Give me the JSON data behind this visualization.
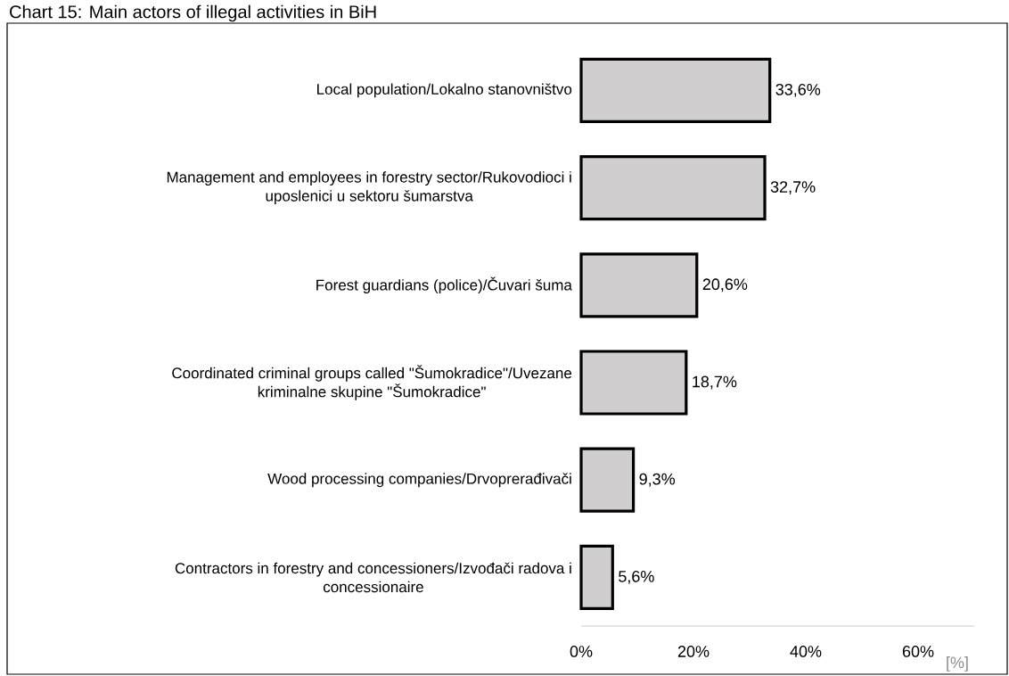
{
  "chart_data": {
    "type": "bar",
    "orientation": "horizontal",
    "title": "Chart 15: Main actors of illegal activities in BiH",
    "categories": [
      "Local population/Lokalno stanovništvo",
      "Management and employees in forestry sector/Rukovodioci i uposlenici u sektoru šumarstva",
      "Forest guardians (police)/Čuvari šuma",
      "Coordinated criminal groups called \"Šumokradice\"/Uvezane kriminalne skupine \"Šumokradice\"",
      "Wood processing companies/Drvoprerađivači",
      "Contractors in forestry and concessioners/Izvođači radova i concessionaire"
    ],
    "values": [
      33.6,
      32.7,
      20.6,
      18.7,
      9.3,
      5.6
    ],
    "value_labels": [
      "33,6%",
      "32,7%",
      "20,6%",
      "18,7%",
      "9,3%",
      "5,6%"
    ],
    "color": "#d0cece",
    "xlim": [
      0,
      70
    ],
    "xticks": [
      {
        "value": 0,
        "label": "0%"
      },
      {
        "value": 20,
        "label": "20%"
      },
      {
        "value": 40,
        "label": "40%"
      },
      {
        "value": 60,
        "label": "60%"
      }
    ],
    "xlabel": "[%]"
  }
}
